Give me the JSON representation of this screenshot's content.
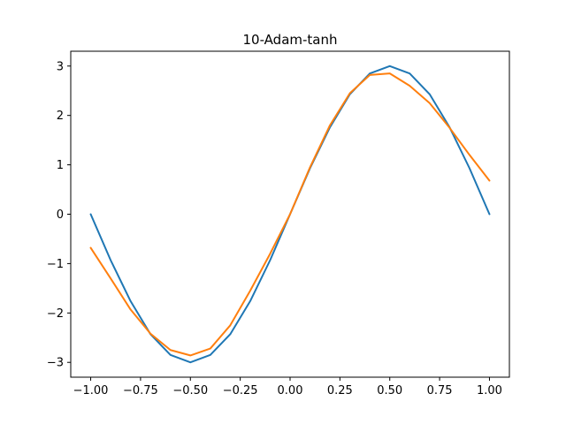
{
  "chart_data": {
    "type": "line",
    "title": "10-Adam-tanh",
    "xlabel": "",
    "ylabel": "",
    "xlim": [
      -1.1,
      1.1
    ],
    "ylim": [
      -3.3,
      3.3
    ],
    "xticks": [
      -1.0,
      -0.75,
      -0.5,
      -0.25,
      0.0,
      0.25,
      0.5,
      0.75,
      1.0
    ],
    "xtick_labels": [
      "−1.00",
      "−0.75",
      "−0.50",
      "−0.25",
      "0.00",
      "0.25",
      "0.50",
      "0.75",
      "1.00"
    ],
    "yticks": [
      -3,
      -2,
      -1,
      0,
      1,
      2,
      3
    ],
    "ytick_labels": [
      "−3",
      "−2",
      "−1",
      "0",
      "1",
      "2",
      "3"
    ],
    "grid": false,
    "legend": "none",
    "series": [
      {
        "color": "#1f77b4",
        "x": [
          -1.0,
          -0.9,
          -0.8,
          -0.7,
          -0.6,
          -0.5,
          -0.4,
          -0.3,
          -0.2,
          -0.1,
          0.0,
          0.1,
          0.2,
          0.3,
          0.4,
          0.5,
          0.6,
          0.7,
          0.8,
          0.9,
          1.0
        ],
        "y": [
          0.0,
          -0.93,
          -1.76,
          -2.43,
          -2.85,
          -3.0,
          -2.85,
          -2.43,
          -1.76,
          -0.93,
          0.0,
          0.93,
          1.76,
          2.43,
          2.85,
          3.0,
          2.85,
          2.43,
          1.76,
          0.93,
          0.0
        ]
      },
      {
        "color": "#ff7f0e",
        "x": [
          -1.0,
          -0.9,
          -0.8,
          -0.7,
          -0.6,
          -0.5,
          -0.4,
          -0.3,
          -0.2,
          -0.1,
          0.0,
          0.1,
          0.2,
          0.3,
          0.4,
          0.5,
          0.6,
          0.7,
          0.8,
          0.9,
          1.0
        ],
        "y": [
          -0.68,
          -1.3,
          -1.93,
          -2.42,
          -2.75,
          -2.86,
          -2.72,
          -2.25,
          -1.55,
          -0.8,
          0.0,
          0.95,
          1.8,
          2.45,
          2.82,
          2.85,
          2.6,
          2.25,
          1.75,
          1.2,
          0.68
        ]
      }
    ]
  }
}
